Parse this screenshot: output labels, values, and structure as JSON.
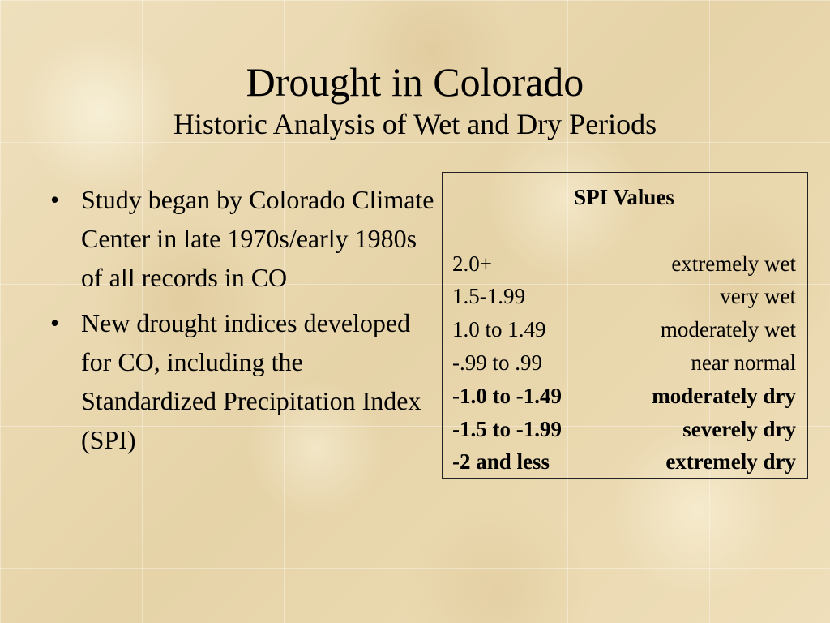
{
  "slide": {
    "title": "Drought in Colorado",
    "subtitle": "Historic Analysis of Wet and Dry Periods",
    "bullets": [
      {
        "marker": "•",
        "text": "Study began by Colorado Climate Center in late 1970s/early 1980s of all records in CO"
      },
      {
        "marker": "•",
        "text": "New drought indices developed for CO, including the Standardized Precipitation Index (SPI)"
      }
    ],
    "spi_box": {
      "heading": "SPI Values",
      "rows": [
        {
          "range": "2.0+",
          "label": "extremely wet",
          "bold": false
        },
        {
          "range": "1.5-1.99",
          "label": "very wet",
          "bold": false
        },
        {
          "range": "1.0 to 1.49",
          "label": "moderately wet",
          "bold": false
        },
        {
          "range": "-.99 to .99",
          "label": "near normal",
          "bold": false
        },
        {
          "range": "-1.0 to -1.49",
          "label": "moderately dry",
          "bold": true
        },
        {
          "range": "-1.5 to -1.99",
          "label": "severely dry",
          "bold": true
        },
        {
          "range": "-2 and less",
          "label": "extremely dry",
          "bold": true
        }
      ]
    }
  },
  "colors": {
    "background": "#ecdcb6",
    "text": "#000000",
    "border": "#222222"
  }
}
